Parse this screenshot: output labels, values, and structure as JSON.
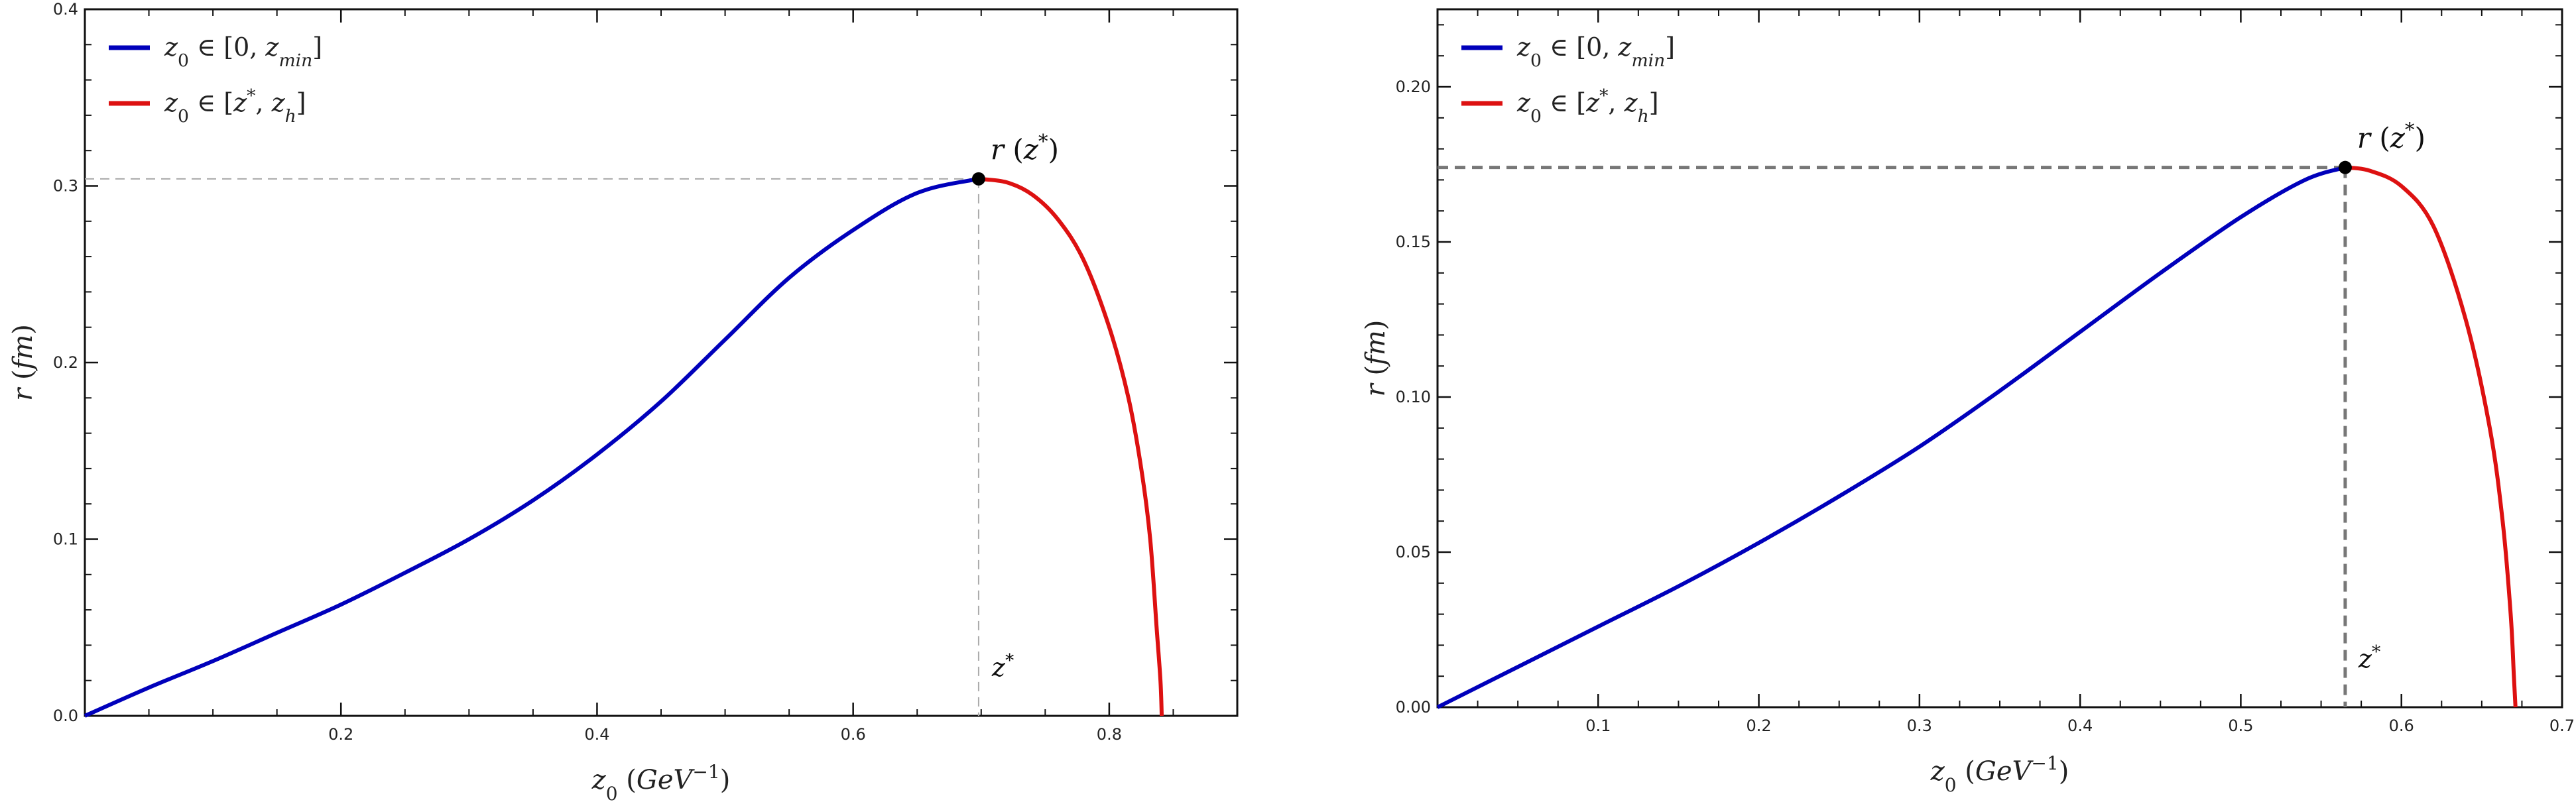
{
  "chart_data": [
    {
      "type": "line",
      "xlabel": "z₀ (GeV⁻¹)",
      "ylabel": "r (fm)",
      "xlim": [
        0.0,
        0.9
      ],
      "ylim": [
        0.0,
        0.4
      ],
      "xticks": [
        0.2,
        0.4,
        0.6,
        0.8
      ],
      "xtick_labels": [
        "0.2",
        "0.4",
        "0.6",
        "0.8"
      ],
      "yticks": [
        0.0,
        0.1,
        0.2,
        0.3,
        0.4
      ],
      "ytick_labels": [
        "0.0",
        "0.1",
        "0.2",
        "0.3",
        "0.4"
      ],
      "legend_position": "top-left",
      "series": [
        {
          "name": "z₀ ∈ [0, zmin]",
          "color": "#0000bb",
          "x": [
            0.0,
            0.05,
            0.1,
            0.15,
            0.2,
            0.25,
            0.3,
            0.35,
            0.4,
            0.45,
            0.5,
            0.55,
            0.6,
            0.65,
            0.698
          ],
          "y": [
            0.0,
            0.016,
            0.031,
            0.047,
            0.063,
            0.081,
            0.1,
            0.122,
            0.148,
            0.178,
            0.213,
            0.248,
            0.275,
            0.296,
            0.304
          ]
        },
        {
          "name": "z₀ ∈ [z*, zh]",
          "color": "#dd1111",
          "x": [
            0.698,
            0.72,
            0.74,
            0.76,
            0.78,
            0.8,
            0.815,
            0.825,
            0.832,
            0.837,
            0.84,
            0.841
          ],
          "y": [
            0.304,
            0.302,
            0.295,
            0.281,
            0.258,
            0.22,
            0.18,
            0.14,
            0.1,
            0.05,
            0.02,
            0.0
          ]
        }
      ],
      "annotations": {
        "point": {
          "x": 0.698,
          "y": 0.304,
          "label": "r (z*)"
        },
        "xmark_label": "z*",
        "guide_color": "#aaaaaa"
      }
    },
    {
      "type": "line",
      "xlabel": "z₀ (GeV⁻¹)",
      "ylabel": "r (fm)",
      "xlim": [
        0.0,
        0.7
      ],
      "ylim": [
        0.0,
        0.225
      ],
      "xticks": [
        0.1,
        0.2,
        0.3,
        0.4,
        0.5,
        0.6,
        0.7
      ],
      "xtick_labels": [
        "0.1",
        "0.2",
        "0.3",
        "0.4",
        "0.5",
        "0.6",
        "0.7"
      ],
      "yticks": [
        0.0,
        0.05,
        0.1,
        0.15,
        0.2
      ],
      "ytick_labels": [
        "0.00",
        "0.05",
        "0.10",
        "0.15",
        "0.20"
      ],
      "legend_position": "top-left",
      "series": [
        {
          "name": "z₀ ∈ [0, zmin]",
          "color": "#0000bb",
          "x": [
            0.0,
            0.05,
            0.1,
            0.15,
            0.2,
            0.25,
            0.3,
            0.35,
            0.4,
            0.45,
            0.5,
            0.54,
            0.565
          ],
          "y": [
            0.0,
            0.013,
            0.026,
            0.039,
            0.053,
            0.068,
            0.084,
            0.102,
            0.121,
            0.14,
            0.158,
            0.17,
            0.174
          ]
        },
        {
          "name": "z₀ ∈ [z*, zh]",
          "color": "#dd1111",
          "x": [
            0.565,
            0.58,
            0.6,
            0.62,
            0.64,
            0.655,
            0.663,
            0.668,
            0.67,
            0.671
          ],
          "y": [
            0.174,
            0.173,
            0.168,
            0.155,
            0.125,
            0.09,
            0.06,
            0.03,
            0.01,
            0.0
          ]
        }
      ],
      "annotations": {
        "point": {
          "x": 0.565,
          "y": 0.174,
          "label": "r (z*)"
        },
        "xmark_label": "z*",
        "guide_color": "#777777"
      }
    }
  ]
}
